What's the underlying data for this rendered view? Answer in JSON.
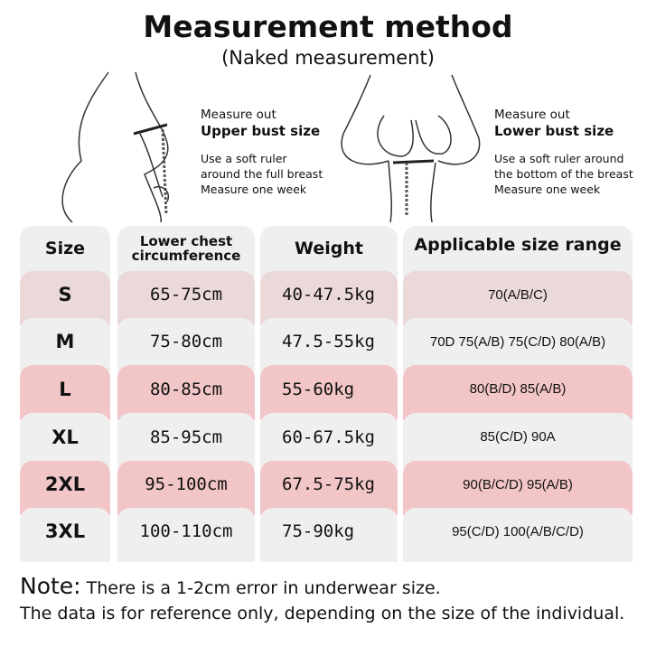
{
  "title": "Measurement method",
  "subtitle": "(Naked measurement)",
  "left_instruction": {
    "line1": "Measure out",
    "line2": "Upper bust size",
    "line3": "Use a soft ruler",
    "line4": "around the full breast",
    "line5": "Measure one week"
  },
  "right_instruction": {
    "line1": "Measure out",
    "line2": "Lower bust size",
    "line3": "Use a soft ruler around",
    "line4": "the bottom of the breast",
    "line5": "Measure one week"
  },
  "table": {
    "headers": [
      "Size",
      "Lower chest circumference",
      "Weight",
      "Applicable size range"
    ],
    "rows": [
      {
        "size": "S",
        "chest": "65-75cm",
        "weight": "40-47.5kg",
        "range": "70(A/B/C)"
      },
      {
        "size": "M",
        "chest": "75-80cm",
        "weight": "47.5-55kg",
        "range": "70D 75(A/B) 75(C/D) 80(A/B)"
      },
      {
        "size": "L",
        "chest": "80-85cm",
        "weight": "55-60kg",
        "range": "80(B/D)   85(A/B)"
      },
      {
        "size": "XL",
        "chest": "85-95cm",
        "weight": "60-67.5kg",
        "range": "85(C/D)    90A"
      },
      {
        "size": "2XL",
        "chest": "95-100cm",
        "weight": "67.5-75kg",
        "range": "90(B/C/D)   95(A/B)"
      },
      {
        "size": "3XL",
        "chest": "100-110cm",
        "weight": "75-90kg",
        "range": "95(C/D)  100(A/B/C/D)"
      }
    ]
  },
  "colors": {
    "gray": "#efefef",
    "pale_pink": "#ebd8d8",
    "pink": "#f2c5c7"
  },
  "note": {
    "label": "Note:",
    "text": " There is a 1-2cm error in underwear size.",
    "line2": "The data is for reference only, depending on the size of the individual."
  }
}
